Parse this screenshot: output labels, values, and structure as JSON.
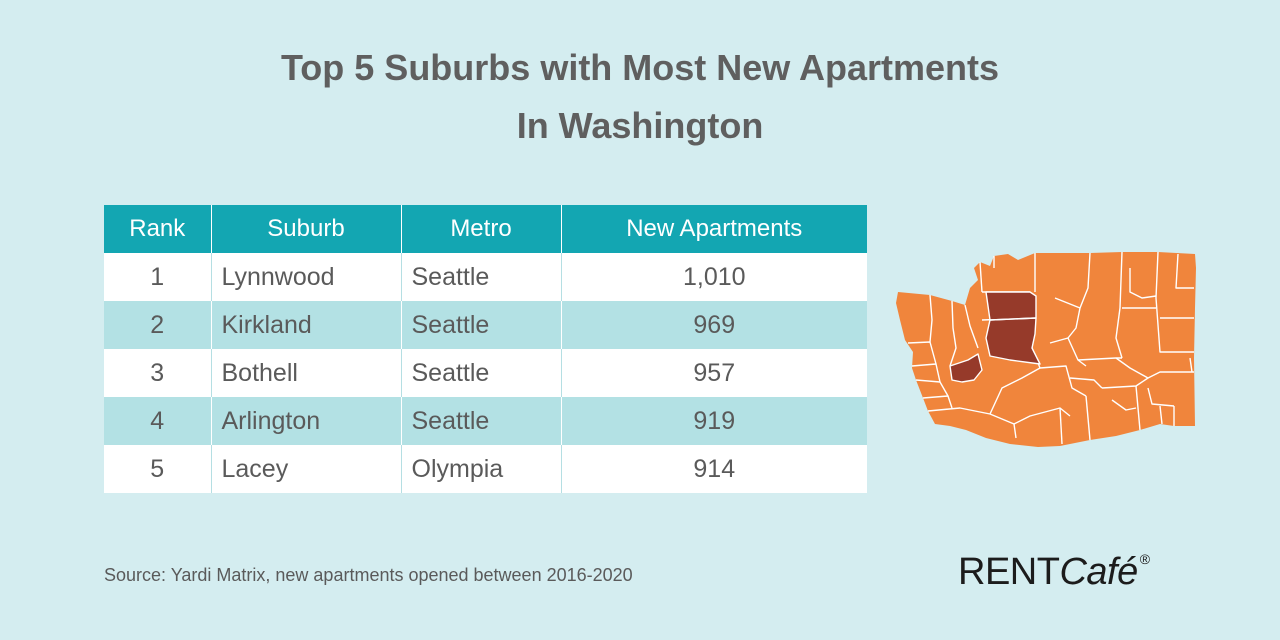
{
  "title_line1": "Top 5 Suburbs with Most New Apartments",
  "title_line2": "In Washington",
  "chart_data": {
    "type": "table",
    "columns": [
      "Rank",
      "Suburb",
      "Metro",
      "New Apartments"
    ],
    "rows": [
      {
        "rank": "1",
        "suburb": "Lynnwood",
        "metro": "Seattle",
        "new_apartments": "1,010"
      },
      {
        "rank": "2",
        "suburb": "Kirkland",
        "metro": "Seattle",
        "new_apartments": "969"
      },
      {
        "rank": "3",
        "suburb": "Bothell",
        "metro": "Seattle",
        "new_apartments": "957"
      },
      {
        "rank": "4",
        "suburb": "Arlington",
        "metro": "Seattle",
        "new_apartments": "919"
      },
      {
        "rank": "5",
        "suburb": "Lacey",
        "metro": "Olympia",
        "new_apartments": "914"
      }
    ]
  },
  "map": {
    "region": "Washington",
    "base_color": "#f0853c",
    "highlight_color": "#963a2a"
  },
  "source": "Source: Yardi Matrix, new apartments opened between 2016-2020",
  "logo": {
    "rent": "RENT",
    "cafe": "Café",
    "registered": "®"
  }
}
